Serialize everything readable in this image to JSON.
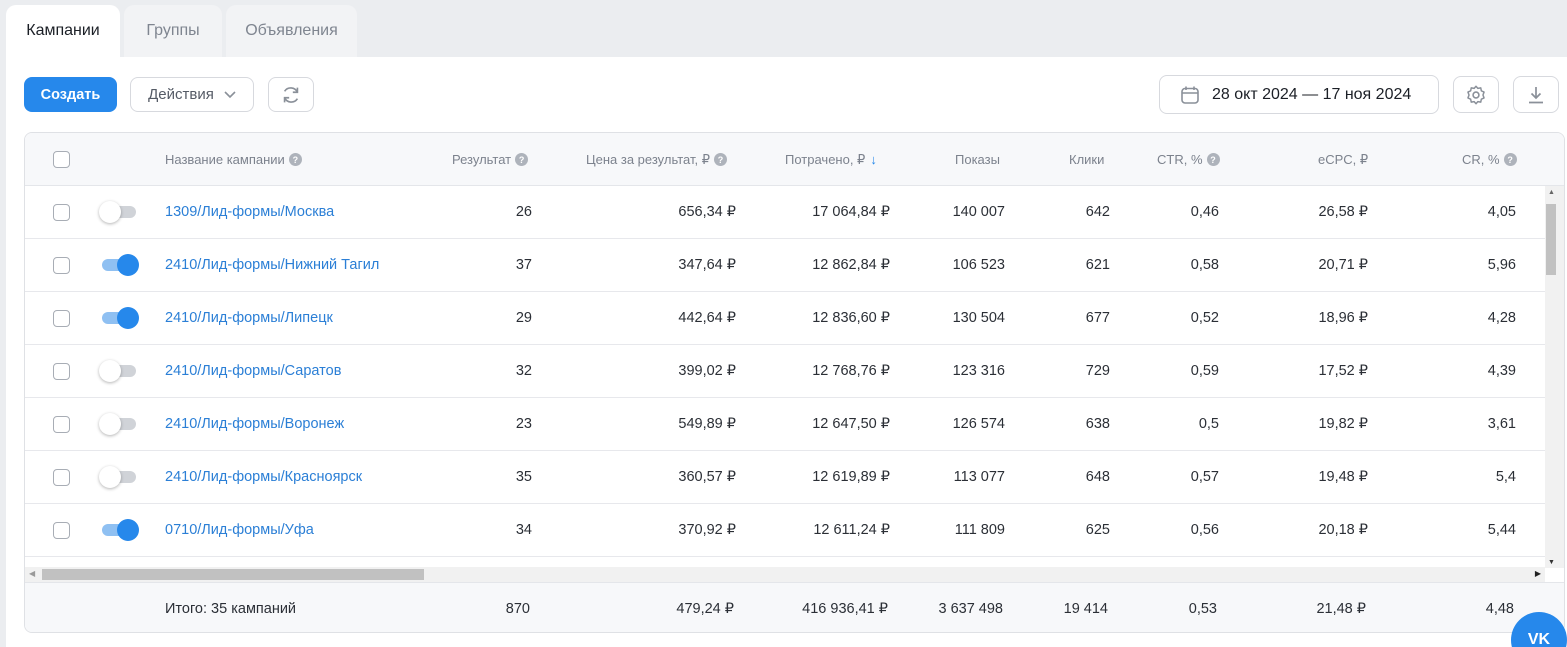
{
  "tabs": [
    {
      "label": "Кампании",
      "active": true
    },
    {
      "label": "Группы",
      "active": false
    },
    {
      "label": "Объявления",
      "active": false
    }
  ],
  "toolbar": {
    "create_label": "Создать",
    "actions_label": "Действия",
    "date_range": "28 окт 2024 — 17 ноя 2024"
  },
  "table": {
    "headers": {
      "name": "Название кампании",
      "result": "Результат",
      "price": "Цена за результат, ₽",
      "spent": "Потрачено, ₽",
      "spent_sort": "↓",
      "shows": "Показы",
      "clicks": "Клики",
      "ctr": "CTR, %",
      "ecpc": "eCPC, ₽",
      "cr": "CR, %"
    },
    "rows": [
      {
        "enabled": false,
        "name": "1309/Лид-формы/Москва",
        "result": "26",
        "price": "656,34 ₽",
        "spent": "17 064,84 ₽",
        "shows": "140 007",
        "clicks": "642",
        "ctr": "0,46",
        "ecpc": "26,58 ₽",
        "cr": "4,05"
      },
      {
        "enabled": true,
        "name": "2410/Лид-формы/Нижний Тагил",
        "result": "37",
        "price": "347,64 ₽",
        "spent": "12 862,84 ₽",
        "shows": "106 523",
        "clicks": "621",
        "ctr": "0,58",
        "ecpc": "20,71 ₽",
        "cr": "5,96"
      },
      {
        "enabled": true,
        "name": "2410/Лид-формы/Липецк",
        "result": "29",
        "price": "442,64 ₽",
        "spent": "12 836,60 ₽",
        "shows": "130 504",
        "clicks": "677",
        "ctr": "0,52",
        "ecpc": "18,96 ₽",
        "cr": "4,28"
      },
      {
        "enabled": false,
        "name": "2410/Лид-формы/Саратов",
        "result": "32",
        "price": "399,02 ₽",
        "spent": "12 768,76 ₽",
        "shows": "123 316",
        "clicks": "729",
        "ctr": "0,59",
        "ecpc": "17,52 ₽",
        "cr": "4,39"
      },
      {
        "enabled": false,
        "name": "2410/Лид-формы/Воронеж",
        "result": "23",
        "price": "549,89 ₽",
        "spent": "12 647,50 ₽",
        "shows": "126 574",
        "clicks": "638",
        "ctr": "0,5",
        "ecpc": "19,82 ₽",
        "cr": "3,61"
      },
      {
        "enabled": false,
        "name": "2410/Лид-формы/Красноярск",
        "result": "35",
        "price": "360,57 ₽",
        "spent": "12 619,89 ₽",
        "shows": "113 077",
        "clicks": "648",
        "ctr": "0,57",
        "ecpc": "19,48 ₽",
        "cr": "5,4"
      },
      {
        "enabled": true,
        "name": "0710/Лид-формы/Уфа",
        "result": "34",
        "price": "370,92 ₽",
        "spent": "12 611,24 ₽",
        "shows": "111 809",
        "clicks": "625",
        "ctr": "0,56",
        "ecpc": "20,18 ₽",
        "cr": "5,44"
      }
    ],
    "totals": {
      "label": "Итого: 35 кампаний",
      "result": "870",
      "price": "479,24 ₽",
      "spent": "416 936,41 ₽",
      "shows": "3 637 498",
      "clicks": "19 414",
      "ctr": "0,53",
      "ecpc": "21,48 ₽",
      "cr": "4,48"
    }
  },
  "vk_button": "VK",
  "colors": {
    "accent": "#2688eb",
    "link": "#2b7fd6"
  }
}
